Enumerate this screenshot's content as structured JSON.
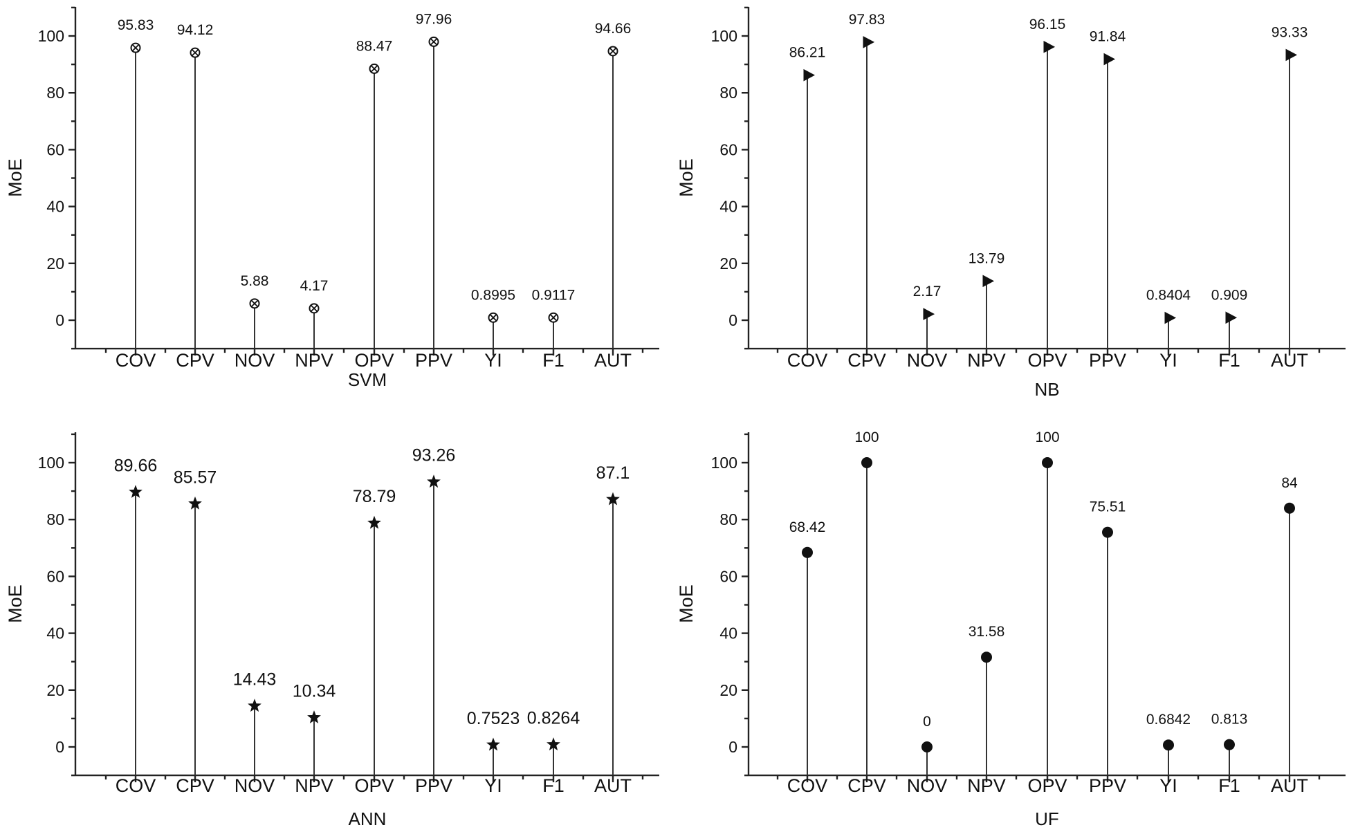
{
  "chart_data": [
    {
      "type": "stem",
      "marker": "circle-x",
      "categories": [
        "COV",
        "CPV",
        "NOV",
        "NPV",
        "OPV",
        "PPV",
        "YI",
        "F1",
        "AUT"
      ],
      "values": [
        95.83,
        94.12,
        5.88,
        4.17,
        88.47,
        97.96,
        0.8995,
        0.9117,
        94.66
      ],
      "value_labels": [
        "95.83",
        "94.12",
        "5.88",
        "4.17",
        "88.47",
        "97.96",
        "0.8995",
        "0.9117",
        "94.66"
      ],
      "xlabel": "SVM",
      "ylabel": "MoE",
      "yticks": [
        0,
        20,
        40,
        60,
        80,
        100
      ],
      "ylim": [
        -10,
        110
      ],
      "grid": false
    },
    {
      "type": "stem",
      "marker": "triangle-right",
      "categories": [
        "COV",
        "CPV",
        "NOV",
        "NPV",
        "OPV",
        "PPV",
        "YI",
        "F1",
        "AUT"
      ],
      "values": [
        86.21,
        97.83,
        2.17,
        13.79,
        96.15,
        91.84,
        0.8404,
        0.909,
        93.33
      ],
      "value_labels": [
        "86.21",
        "97.83",
        "2.17",
        "13.79",
        "96.15",
        "91.84",
        "0.8404",
        "0.909",
        "93.33"
      ],
      "xlabel": "NB",
      "ylabel": "MoE",
      "yticks": [
        0,
        20,
        40,
        60,
        80,
        100
      ],
      "ylim": [
        -10,
        110
      ],
      "grid": false
    },
    {
      "type": "stem",
      "marker": "star",
      "categories": [
        "COV",
        "CPV",
        "NOV",
        "NPV",
        "OPV",
        "PPV",
        "YI",
        "F1",
        "AUT"
      ],
      "values": [
        89.66,
        85.57,
        14.43,
        10.34,
        78.79,
        93.26,
        0.7523,
        0.8264,
        87.1
      ],
      "value_labels": [
        "89.66",
        "85.57",
        "14.43",
        "10.34",
        "78.79",
        "93.26",
        "0.7523",
        "0.8264",
        "87.1"
      ],
      "xlabel": "ANN",
      "ylabel": "MoE",
      "yticks": [
        0,
        20,
        40,
        60,
        80,
        100
      ],
      "ylim": [
        -10,
        110
      ],
      "grid": false
    },
    {
      "type": "stem",
      "marker": "dot",
      "categories": [
        "COV",
        "CPV",
        "NOV",
        "NPV",
        "OPV",
        "PPV",
        "YI",
        "F1",
        "AUT"
      ],
      "values": [
        68.42,
        100,
        0,
        31.58,
        100,
        75.51,
        0.6842,
        0.813,
        84
      ],
      "value_labels": [
        "68.42",
        "100",
        "0",
        "31.58",
        "100",
        "75.51",
        "0.6842",
        "0.813",
        "84"
      ],
      "xlabel": "UF",
      "ylabel": "MoE",
      "yticks": [
        0,
        20,
        40,
        60,
        80,
        100
      ],
      "ylim": [
        -10,
        110
      ],
      "grid": false
    }
  ]
}
